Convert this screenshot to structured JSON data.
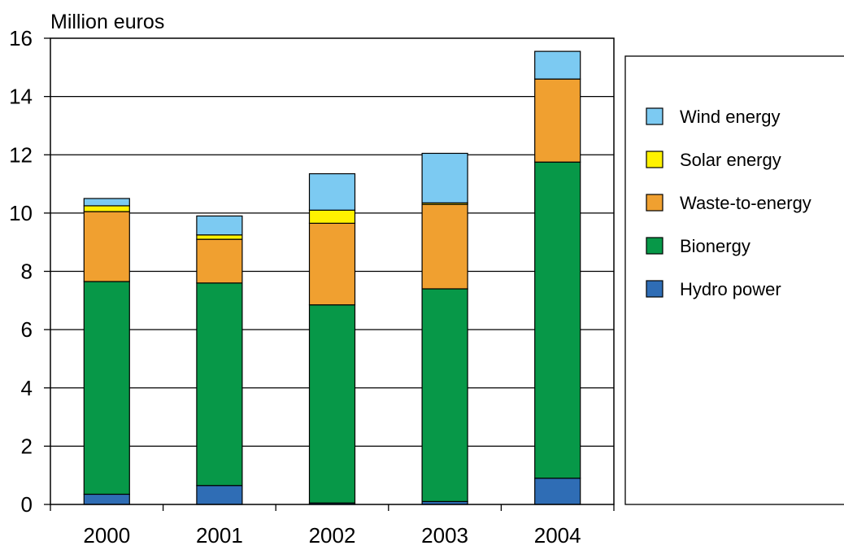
{
  "chart_data": {
    "type": "bar",
    "stacked": true,
    "title": "",
    "ylabel": "Million euros",
    "xlabel": "",
    "categories": [
      "2000",
      "2001",
      "2002",
      "2003",
      "2004"
    ],
    "ylim": [
      0,
      16
    ],
    "yticks": [
      "0",
      "2",
      "4",
      "6",
      "8",
      "10",
      "12",
      "14",
      "16"
    ],
    "grid": "horizontal",
    "legend_position": "right",
    "series": [
      {
        "name": "Hydro power",
        "color": "#2f6db5",
        "values": [
          0.35,
          0.65,
          0.05,
          0.1,
          0.9
        ]
      },
      {
        "name": "Bionergy",
        "color": "#079848",
        "values": [
          7.3,
          6.95,
          6.8,
          7.3,
          10.85
        ]
      },
      {
        "name": "Waste-to-energy",
        "color": "#f0a030",
        "values": [
          2.4,
          1.5,
          2.8,
          2.9,
          2.85
        ]
      },
      {
        "name": "Solar energy",
        "color": "#fff200",
        "values": [
          0.2,
          0.15,
          0.45,
          0.05,
          0.0
        ]
      },
      {
        "name": "Wind energy",
        "color": "#7ccaf2",
        "values": [
          0.25,
          0.65,
          1.25,
          1.7,
          0.95
        ]
      }
    ]
  }
}
